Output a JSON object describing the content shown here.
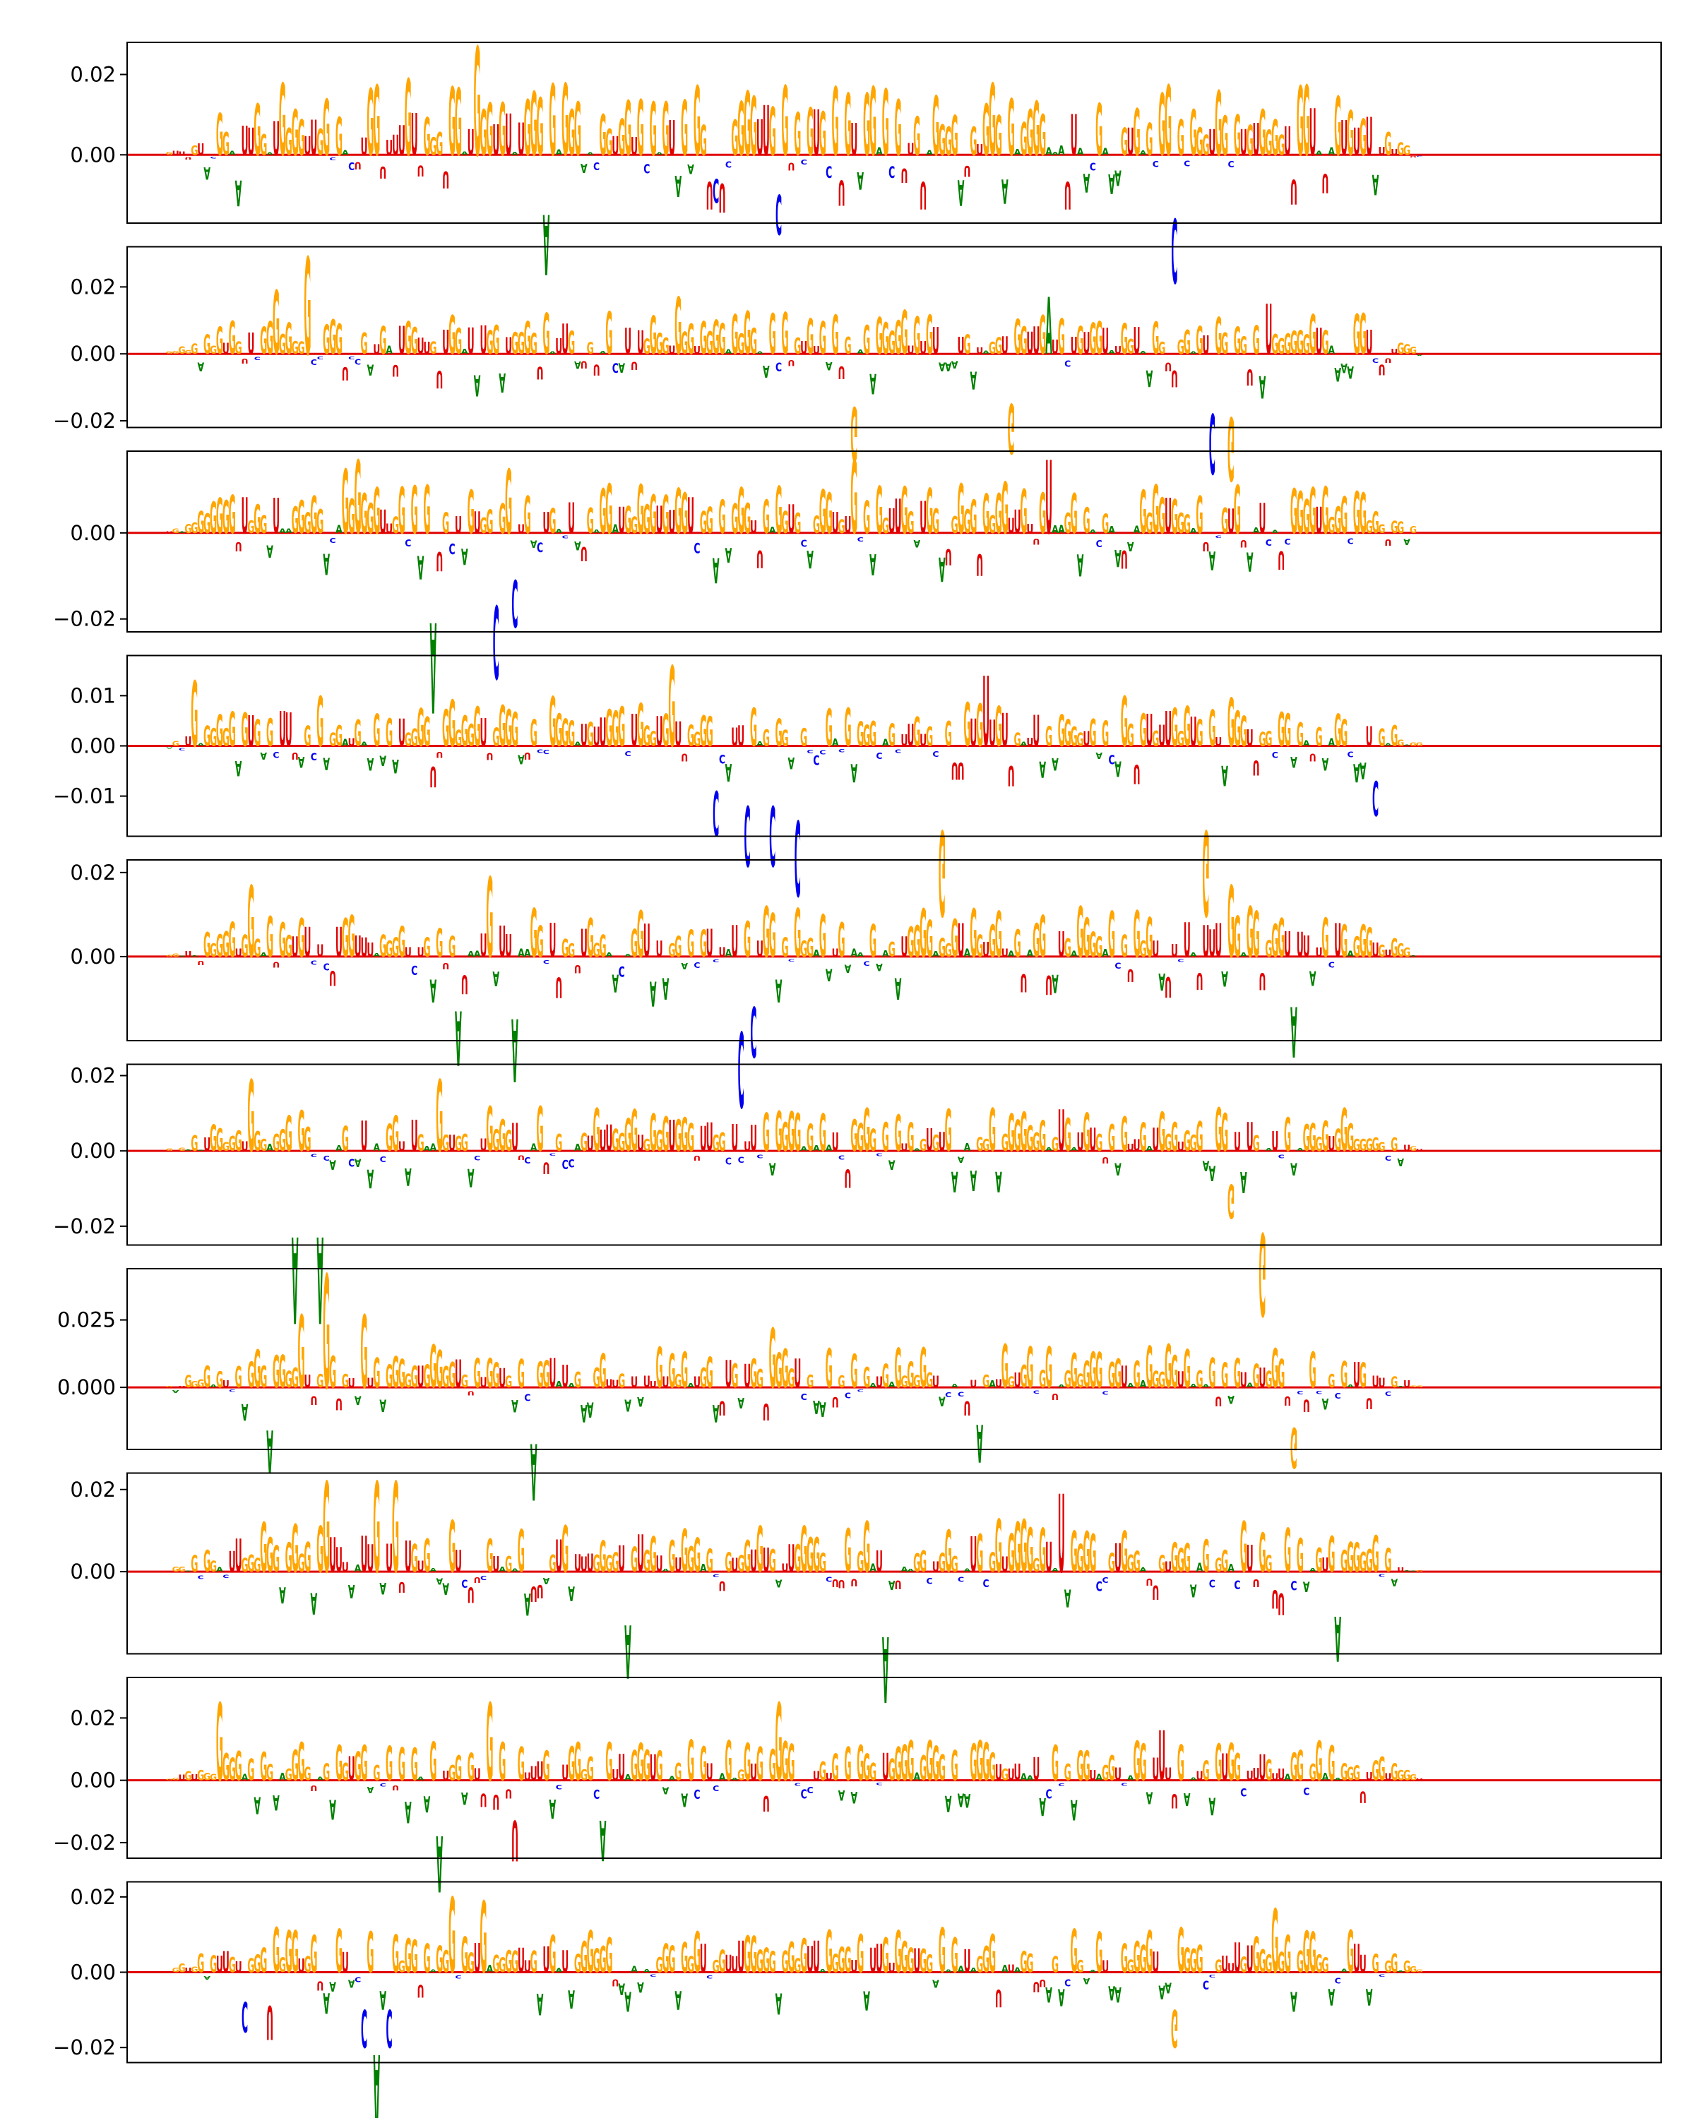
{
  "chart_data": [
    {
      "type": "sequence-logo",
      "ylim": [
        -0.017,
        0.028
      ],
      "yticks": [
        "0.00",
        "0.02"
      ],
      "ytick_values": [
        0.0,
        0.02
      ],
      "seed": 11,
      "amp_pos": 0.018,
      "amp_neg": 0.006,
      "highlights": [
        {
          "pos": 0.255,
          "value": 0.027,
          "letter": "G"
        },
        {
          "pos": 0.205,
          "value": 0.019,
          "letter": "G"
        },
        {
          "pos": 0.46,
          "value": 0.016,
          "letter": "G"
        },
        {
          "pos": 0.44,
          "value": -0.006,
          "letter": "C"
        },
        {
          "pos": 0.485,
          "value": -0.01,
          "letter": "C"
        },
        {
          "pos": 0.765,
          "value": -0.006,
          "letter": "C"
        },
        {
          "pos": 0.765,
          "value": 0.008,
          "letter": "G"
        },
        {
          "pos": 0.785,
          "value": -0.016,
          "letter": "C"
        },
        {
          "pos": 0.31,
          "value": -0.015,
          "letter": "A"
        },
        {
          "pos": 0.93,
          "value": 0.009,
          "letter": "G"
        }
      ]
    },
    {
      "type": "sequence-logo",
      "ylim": [
        -0.022,
        0.032
      ],
      "yticks": [
        "−0.02",
        "0.00",
        "0.02"
      ],
      "ytick_values": [
        -0.02,
        0.0,
        0.02
      ],
      "seed": 23,
      "amp_pos": 0.013,
      "amp_neg": 0.006,
      "highlights": [
        {
          "pos": 0.13,
          "value": 0.029,
          "letter": "G"
        },
        {
          "pos": 0.105,
          "value": 0.019,
          "letter": "G"
        },
        {
          "pos": 0.41,
          "value": 0.017,
          "letter": "G"
        },
        {
          "pos": 0.69,
          "value": 0.017,
          "letter": "A"
        },
        {
          "pos": 0.545,
          "value": -0.016,
          "letter": "G"
        },
        {
          "pos": 0.66,
          "value": -0.015,
          "letter": "G"
        },
        {
          "pos": 0.815,
          "value": -0.018,
          "letter": "C"
        },
        {
          "pos": 0.83,
          "value": -0.019,
          "letter": "G"
        },
        {
          "pos": 0.855,
          "value": 0.015,
          "letter": "U"
        }
      ]
    },
    {
      "type": "sequence-logo",
      "ylim": [
        -0.023,
        0.019
      ],
      "yticks": [
        "−0.02",
        "0.00"
      ],
      "ytick_values": [
        -0.02,
        0.0
      ],
      "seed": 37,
      "amp_pos": 0.012,
      "amp_neg": 0.005,
      "highlights": [
        {
          "pos": 0.165,
          "value": 0.017,
          "letter": "G"
        },
        {
          "pos": 0.28,
          "value": 0.015,
          "letter": "G"
        },
        {
          "pos": 0.545,
          "value": 0.017,
          "letter": "G"
        },
        {
          "pos": 0.69,
          "value": 0.017,
          "letter": "U"
        },
        {
          "pos": 0.225,
          "value": -0.021,
          "letter": "A"
        },
        {
          "pos": 0.27,
          "value": -0.017,
          "letter": "C"
        },
        {
          "pos": 0.285,
          "value": -0.011,
          "letter": "C"
        },
        {
          "pos": 0.155,
          "value": 0.015,
          "letter": "G"
        }
      ]
    },
    {
      "type": "sequence-logo",
      "ylim": [
        -0.018,
        0.018
      ],
      "yticks": [
        "−0.01",
        "0.00",
        "0.01"
      ],
      "ytick_values": [
        -0.01,
        0.0,
        0.01
      ],
      "seed": 41,
      "amp_pos": 0.01,
      "amp_neg": 0.004,
      "highlights": [
        {
          "pos": 0.405,
          "value": 0.016,
          "letter": "G"
        },
        {
          "pos": 0.045,
          "value": 0.013,
          "letter": "G"
        },
        {
          "pos": 0.645,
          "value": 0.014,
          "letter": "U"
        },
        {
          "pos": 0.44,
          "value": -0.009,
          "letter": "C"
        },
        {
          "pos": 0.46,
          "value": -0.012,
          "letter": "C"
        },
        {
          "pos": 0.48,
          "value": -0.012,
          "letter": "C"
        },
        {
          "pos": 0.5,
          "value": -0.015,
          "letter": "C"
        },
        {
          "pos": 0.61,
          "value": -0.017,
          "letter": "G"
        },
        {
          "pos": 0.81,
          "value": -0.017,
          "letter": "G"
        },
        {
          "pos": 0.94,
          "value": -0.007,
          "letter": "C"
        }
      ]
    },
    {
      "type": "sequence-logo",
      "ylim": [
        -0.02,
        0.023
      ],
      "yticks": [
        "0.00",
        "0.02"
      ],
      "ytick_values": [
        0.0,
        0.02
      ],
      "seed": 53,
      "amp_pos": 0.012,
      "amp_neg": 0.005,
      "highlights": [
        {
          "pos": 0.265,
          "value": 0.019,
          "letter": "G"
        },
        {
          "pos": 0.83,
          "value": 0.017,
          "letter": "G"
        },
        {
          "pos": 0.085,
          "value": 0.017,
          "letter": "G"
        },
        {
          "pos": 0.455,
          "value": -0.018,
          "letter": "C"
        },
        {
          "pos": 0.465,
          "value": -0.012,
          "letter": "C"
        },
        {
          "pos": 0.285,
          "value": -0.015,
          "letter": "A"
        },
        {
          "pos": 0.245,
          "value": -0.013,
          "letter": "A"
        },
        {
          "pos": 0.875,
          "value": -0.012,
          "letter": "A"
        }
      ]
    },
    {
      "type": "sequence-logo",
      "ylim": [
        -0.025,
        0.023
      ],
      "yticks": [
        "−0.02",
        "0.00",
        "0.02"
      ],
      "ytick_values": [
        -0.02,
        0.0,
        0.02
      ],
      "seed": 67,
      "amp_pos": 0.012,
      "amp_neg": 0.005,
      "highlights": [
        {
          "pos": 0.085,
          "value": 0.019,
          "letter": "G"
        },
        {
          "pos": 0.23,
          "value": 0.019,
          "letter": "G"
        },
        {
          "pos": 0.12,
          "value": -0.023,
          "letter": "A"
        },
        {
          "pos": 0.14,
          "value": -0.023,
          "letter": "A"
        },
        {
          "pos": 0.85,
          "value": -0.022,
          "letter": "G"
        },
        {
          "pos": 0.83,
          "value": -0.009,
          "letter": "G"
        },
        {
          "pos": 0.7,
          "value": 0.011,
          "letter": "U"
        }
      ]
    },
    {
      "type": "sequence-logo",
      "ylim": [
        -0.023,
        0.044
      ],
      "yticks": [
        "0.000",
        "0.025"
      ],
      "ytick_values": [
        0.0,
        0.025
      ],
      "seed": 79,
      "amp_pos": 0.016,
      "amp_neg": 0.006,
      "highlights": [
        {
          "pos": 0.145,
          "value": 0.042,
          "letter": "G"
        },
        {
          "pos": 0.125,
          "value": 0.027,
          "letter": "G"
        },
        {
          "pos": 0.17,
          "value": 0.027,
          "letter": "G"
        },
        {
          "pos": 0.48,
          "value": 0.022,
          "letter": "G"
        },
        {
          "pos": 0.1,
          "value": -0.016,
          "letter": "A"
        },
        {
          "pos": 0.3,
          "value": -0.021,
          "letter": "A"
        },
        {
          "pos": 0.64,
          "value": -0.014,
          "letter": "A"
        },
        {
          "pos": 0.875,
          "value": -0.015,
          "letter": "G"
        }
      ]
    },
    {
      "type": "sequence-logo",
      "ylim": [
        -0.02,
        0.024
      ],
      "yticks": [
        "0.00",
        "0.02"
      ],
      "ytick_values": [
        0.0,
        0.02
      ],
      "seed": 83,
      "amp_pos": 0.013,
      "amp_neg": 0.005,
      "highlights": [
        {
          "pos": 0.145,
          "value": 0.022,
          "letter": "G"
        },
        {
          "pos": 0.18,
          "value": 0.022,
          "letter": "G"
        },
        {
          "pos": 0.195,
          "value": 0.022,
          "letter": "G"
        },
        {
          "pos": 0.7,
          "value": 0.019,
          "letter": "U"
        },
        {
          "pos": 0.565,
          "value": -0.016,
          "letter": "A"
        },
        {
          "pos": 0.37,
          "value": -0.013,
          "letter": "A"
        },
        {
          "pos": 0.91,
          "value": -0.011,
          "letter": "A"
        }
      ]
    },
    {
      "type": "sequence-logo",
      "ylim": [
        -0.025,
        0.033
      ],
      "yticks": [
        "−0.02",
        "0.00",
        "0.02"
      ],
      "ytick_values": [
        -0.02,
        0.0,
        0.02
      ],
      "seed": 97,
      "amp_pos": 0.013,
      "amp_neg": 0.006,
      "highlights": [
        {
          "pos": 0.06,
          "value": 0.025,
          "letter": "G"
        },
        {
          "pos": 0.23,
          "value": 0.025,
          "letter": "G"
        },
        {
          "pos": 0.265,
          "value": 0.025,
          "letter": "G"
        },
        {
          "pos": 0.485,
          "value": 0.025,
          "letter": "G"
        },
        {
          "pos": 0.775,
          "value": 0.016,
          "letter": "U"
        },
        {
          "pos": 0.23,
          "value": -0.018,
          "letter": "A"
        },
        {
          "pos": 0.285,
          "value": -0.013,
          "letter": "U"
        },
        {
          "pos": 0.35,
          "value": -0.013,
          "letter": "A"
        }
      ]
    },
    {
      "type": "sequence-logo",
      "ylim": [
        -0.024,
        0.024
      ],
      "yticks": [
        "−0.02",
        "0.00",
        "0.02"
      ],
      "ytick_values": [
        -0.02,
        0.0,
        0.02
      ],
      "seed": 101,
      "amp_pos": 0.012,
      "amp_neg": 0.005,
      "highlights": [
        {
          "pos": 0.24,
          "value": 0.02,
          "letter": "G"
        },
        {
          "pos": 0.26,
          "value": 0.019,
          "letter": "G"
        },
        {
          "pos": 0.86,
          "value": 0.017,
          "letter": "G"
        },
        {
          "pos": 0.08,
          "value": -0.008,
          "letter": "C"
        },
        {
          "pos": 0.1,
          "value": -0.009,
          "letter": "U"
        },
        {
          "pos": 0.17,
          "value": -0.01,
          "letter": "C"
        },
        {
          "pos": 0.19,
          "value": -0.01,
          "letter": "C"
        },
        {
          "pos": 0.18,
          "value": -0.022,
          "letter": "A"
        },
        {
          "pos": 0.785,
          "value": -0.01,
          "letter": "G"
        }
      ]
    }
  ],
  "colors": {
    "A": "#008000",
    "C": "#0000ee",
    "G": "#ffa500",
    "U": "#e00000",
    "axes": "#000000",
    "baseline": "#e00000"
  }
}
